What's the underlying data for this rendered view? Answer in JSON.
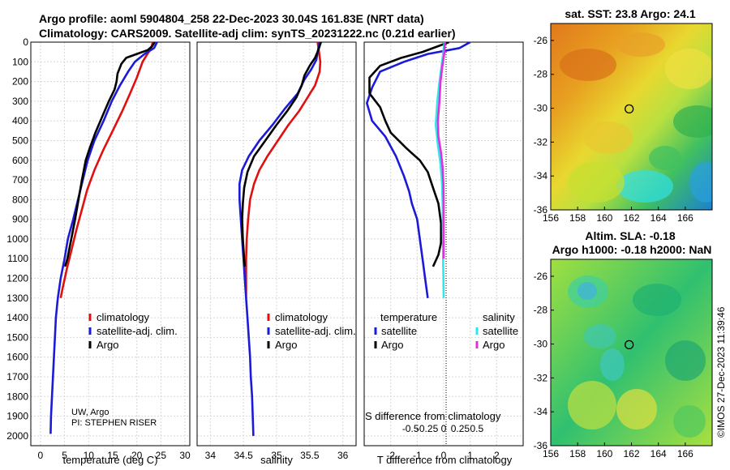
{
  "header": {
    "line1": "Argo profile: aoml 5904804_258 22-Dec-2023 30.04S 161.83E (NRT data)",
    "line2": "Climatology: CARS2009. Satellite-adj clim: synTS_20231222.nc (0.21d earlier)"
  },
  "credit": {
    "lines": [
      "UW, Argo",
      "PI: STEPHEN RISER"
    ]
  },
  "imos_stamp": "©IMOS 27-Dec-2023 11:39:46",
  "colors": {
    "climatology": "#e01010",
    "satellite": "#1a1ad8",
    "argo": "#000000",
    "cyan": "#30e8e8",
    "magenta": "#e030e0"
  },
  "chart_data": [
    {
      "type": "line",
      "name": "temperature-profile",
      "xlabel": "temperature (deg C)",
      "ylabel": "",
      "xlim": [
        -2,
        31
      ],
      "ylim": [
        0,
        2050
      ],
      "y_inverted": true,
      "xticks": [
        0,
        5,
        10,
        15,
        20,
        25,
        30
      ],
      "yticks": [
        0,
        100,
        200,
        300,
        400,
        500,
        600,
        700,
        800,
        900,
        1000,
        1100,
        1200,
        1300,
        1400,
        1500,
        1600,
        1700,
        1800,
        1900,
        2000
      ],
      "legend": [
        "climatology",
        "satellite-adj. clim.",
        "Argo"
      ],
      "series": [
        {
          "name": "climatology",
          "color": "#e01010",
          "points": [
            [
              23.3,
              0
            ],
            [
              23.0,
              30
            ],
            [
              22.2,
              60
            ],
            [
              21.2,
              100
            ],
            [
              20.0,
              180
            ],
            [
              18.6,
              260
            ],
            [
              17.0,
              350
            ],
            [
              15.0,
              450
            ],
            [
              13.0,
              550
            ],
            [
              11.2,
              650
            ],
            [
              9.7,
              750
            ],
            [
              8.6,
              850
            ],
            [
              7.5,
              950
            ],
            [
              6.5,
              1050
            ],
            [
              5.5,
              1150
            ],
            [
              4.6,
              1250
            ],
            [
              4.2,
              1300
            ]
          ]
        },
        {
          "name": "satellite-adj. clim.",
          "color": "#1a1ad8",
          "points": [
            [
              24.2,
              0
            ],
            [
              23.6,
              30
            ],
            [
              21.6,
              60
            ],
            [
              19.6,
              100
            ],
            [
              18.2,
              150
            ],
            [
              16.5,
              220
            ],
            [
              14.8,
              300
            ],
            [
              13.1,
              400
            ],
            [
              11.2,
              500
            ],
            [
              9.8,
              600
            ],
            [
              8.8,
              700
            ],
            [
              7.8,
              800
            ],
            [
              6.8,
              900
            ],
            [
              5.7,
              1000
            ],
            [
              5.0,
              1100
            ],
            [
              4.2,
              1200
            ],
            [
              3.6,
              1300
            ],
            [
              3.2,
              1400
            ],
            [
              3.0,
              1500
            ],
            [
              2.8,
              1600
            ],
            [
              2.6,
              1700
            ],
            [
              2.4,
              1800
            ],
            [
              2.2,
              1900
            ],
            [
              2.1,
              1990
            ]
          ]
        },
        {
          "name": "Argo",
          "color": "#000000",
          "points": [
            [
              23.7,
              0
            ],
            [
              23.2,
              20
            ],
            [
              22.3,
              40
            ],
            [
              20.0,
              60
            ],
            [
              17.8,
              80
            ],
            [
              16.8,
              110
            ],
            [
              16.0,
              160
            ],
            [
              15.8,
              200
            ],
            [
              15.4,
              240
            ],
            [
              14.2,
              300
            ],
            [
              12.8,
              380
            ],
            [
              11.4,
              460
            ],
            [
              10.2,
              540
            ],
            [
              9.4,
              600
            ],
            [
              8.6,
              700
            ],
            [
              7.9,
              800
            ],
            [
              7.2,
              900
            ],
            [
              6.4,
              1000
            ],
            [
              5.6,
              1100
            ],
            [
              5.1,
              1140
            ]
          ]
        }
      ]
    },
    {
      "type": "line",
      "name": "salinity-profile",
      "xlabel": "salinity",
      "xlim": [
        33.8,
        36.2
      ],
      "ylim": [
        0,
        2050
      ],
      "y_inverted": true,
      "xticks": [
        34,
        34.5,
        35,
        35.5,
        36
      ],
      "legend": [
        "climatology",
        "satellite-adj. clim.",
        "Argo"
      ],
      "series": [
        {
          "name": "climatology",
          "color": "#e01010",
          "points": [
            [
              35.62,
              0
            ],
            [
              35.64,
              50
            ],
            [
              35.66,
              100
            ],
            [
              35.65,
              150
            ],
            [
              35.58,
              220
            ],
            [
              35.47,
              280
            ],
            [
              35.34,
              350
            ],
            [
              35.18,
              420
            ],
            [
              35.02,
              500
            ],
            [
              34.86,
              580
            ],
            [
              34.74,
              650
            ],
            [
              34.66,
              720
            ],
            [
              34.6,
              800
            ],
            [
              34.57,
              900
            ],
            [
              34.55,
              1000
            ],
            [
              34.54,
              1100
            ],
            [
              34.54,
              1200
            ],
            [
              34.54,
              1300
            ]
          ]
        },
        {
          "name": "satellite-adj. clim.",
          "color": "#1a1ad8",
          "points": [
            [
              35.65,
              0
            ],
            [
              35.62,
              50
            ],
            [
              35.6,
              90
            ],
            [
              35.52,
              140
            ],
            [
              35.42,
              190
            ],
            [
              35.32,
              260
            ],
            [
              35.12,
              340
            ],
            [
              34.94,
              420
            ],
            [
              34.74,
              500
            ],
            [
              34.58,
              580
            ],
            [
              34.48,
              650
            ],
            [
              34.44,
              720
            ],
            [
              34.44,
              800
            ],
            [
              34.46,
              900
            ],
            [
              34.48,
              1000
            ],
            [
              34.5,
              1100
            ],
            [
              34.52,
              1200
            ],
            [
              34.54,
              1300
            ],
            [
              34.56,
              1400
            ],
            [
              34.58,
              1500
            ],
            [
              34.6,
              1600
            ],
            [
              34.61,
              1700
            ],
            [
              34.63,
              1800
            ],
            [
              34.64,
              1900
            ],
            [
              34.65,
              2000
            ]
          ]
        },
        {
          "name": "Argo",
          "color": "#000000",
          "points": [
            [
              35.67,
              0
            ],
            [
              35.63,
              40
            ],
            [
              35.58,
              80
            ],
            [
              35.5,
              120
            ],
            [
              35.42,
              170
            ],
            [
              35.38,
              220
            ],
            [
              35.3,
              280
            ],
            [
              35.16,
              350
            ],
            [
              35.0,
              420
            ],
            [
              34.83,
              500
            ],
            [
              34.66,
              580
            ],
            [
              34.56,
              660
            ],
            [
              34.51,
              740
            ],
            [
              34.49,
              820
            ],
            [
              34.48,
              900
            ],
            [
              34.49,
              1000
            ],
            [
              34.51,
              1100
            ],
            [
              34.52,
              1140
            ]
          ]
        }
      ]
    },
    {
      "type": "line",
      "name": "difference-from-climatology",
      "xlabel": "T difference from climatology",
      "x2label": "S difference from climatology",
      "xlim": [
        -3,
        3
      ],
      "x2lim": [
        -1.2,
        1.2
      ],
      "ylim": [
        0,
        2050
      ],
      "y_inverted": true,
      "xticks": [
        -2,
        -1,
        0,
        1,
        2
      ],
      "x2ticks": [
        -0.5,
        -0.25,
        0,
        0.25,
        0.5
      ],
      "legend": [
        "temperature satellite",
        "temperature Argo",
        "salinity satellite",
        "salinity Argo"
      ],
      "series": [
        {
          "name": "temperature satellite",
          "color": "#1a1ad8",
          "points": [
            [
              1.0,
              0
            ],
            [
              0.6,
              30
            ],
            [
              -0.6,
              60
            ],
            [
              -1.5,
              100
            ],
            [
              -2.4,
              150
            ],
            [
              -2.7,
              230
            ],
            [
              -2.9,
              310
            ],
            [
              -2.7,
              400
            ],
            [
              -2.2,
              480
            ],
            [
              -1.8,
              580
            ],
            [
              -1.5,
              680
            ],
            [
              -1.3,
              760
            ],
            [
              -1.2,
              820
            ],
            [
              -1.0,
              900
            ],
            [
              -0.9,
              1000
            ],
            [
              -0.8,
              1100
            ],
            [
              -0.7,
              1200
            ],
            [
              -0.6,
              1300
            ]
          ]
        },
        {
          "name": "temperature Argo",
          "color": "#000000",
          "points": [
            [
              0.2,
              0
            ],
            [
              -0.2,
              20
            ],
            [
              -0.8,
              50
            ],
            [
              -1.6,
              80
            ],
            [
              -2.4,
              120
            ],
            [
              -2.8,
              180
            ],
            [
              -2.8,
              260
            ],
            [
              -2.4,
              330
            ],
            [
              -2.2,
              400
            ],
            [
              -2.0,
              460
            ],
            [
              -1.4,
              540
            ],
            [
              -0.9,
              600
            ],
            [
              -0.6,
              660
            ],
            [
              -0.4,
              740
            ],
            [
              -0.2,
              820
            ],
            [
              -0.1,
              920
            ],
            [
              -0.1,
              1020
            ],
            [
              -0.2,
              1080
            ],
            [
              -0.4,
              1140
            ]
          ]
        },
        {
          "name": "salinity satellite",
          "color": "#30e8e8",
          "points": [
            [
              0.03,
              0
            ],
            [
              -0.02,
              60
            ],
            [
              -0.08,
              120
            ],
            [
              -0.16,
              200
            ],
            [
              -0.24,
              300
            ],
            [
              -0.3,
              420
            ],
            [
              -0.22,
              520
            ],
            [
              -0.12,
              620
            ],
            [
              -0.06,
              720
            ],
            [
              -0.04,
              820
            ],
            [
              -0.03,
              950
            ],
            [
              -0.02,
              1100
            ],
            [
              -0.01,
              1200
            ],
            [
              0.0,
              1300
            ]
          ]
        },
        {
          "name": "salinity Argo",
          "color": "#e030e0",
          "points": [
            [
              0.05,
              0
            ],
            [
              0.02,
              60
            ],
            [
              -0.05,
              120
            ],
            [
              -0.12,
              200
            ],
            [
              -0.16,
              300
            ],
            [
              -0.22,
              400
            ],
            [
              -0.2,
              480
            ],
            [
              -0.1,
              560
            ],
            [
              -0.04,
              640
            ],
            [
              -0.01,
              720
            ],
            [
              0.0,
              820
            ],
            [
              0.0,
              950
            ],
            [
              0.0,
              1100
            ]
          ]
        }
      ]
    },
    {
      "type": "heatmap",
      "name": "sst-map",
      "title": "sat. SST: 23.8 Argo: 24.1",
      "xlim": [
        156,
        168
      ],
      "ylim": [
        -36,
        -25
      ],
      "xticks": [
        156,
        158,
        160,
        162,
        164,
        166
      ],
      "yticks": [
        -26,
        -28,
        -30,
        -32,
        -34,
        -36
      ],
      "marker": {
        "lon": 161.83,
        "lat": -30.04
      }
    },
    {
      "type": "heatmap",
      "name": "sla-map",
      "title": "Altim. SLA: -0.18",
      "subtitle": "Argo h1000: -0.18 h2000: NaN",
      "xlim": [
        156,
        168
      ],
      "ylim": [
        -36,
        -25
      ],
      "xticks": [
        156,
        158,
        160,
        162,
        164,
        166
      ],
      "yticks": [
        -26,
        -28,
        -30,
        -32,
        -34,
        -36
      ],
      "marker": {
        "lon": 161.83,
        "lat": -30.04
      }
    }
  ]
}
